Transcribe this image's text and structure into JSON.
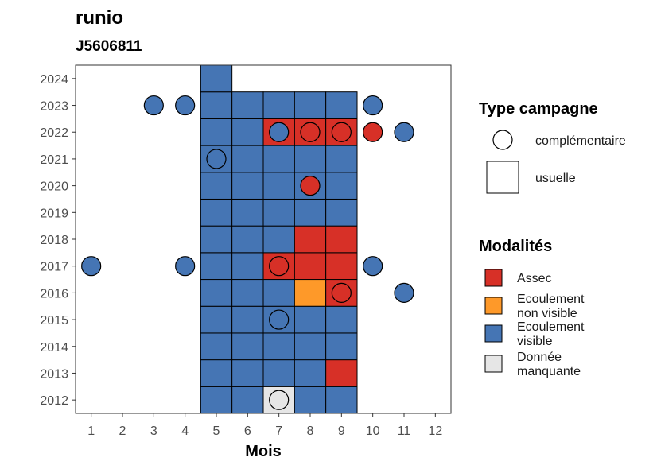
{
  "chart_data": {
    "type": "heatmap",
    "title": "runio",
    "subtitle": "J5606811",
    "xlabel": "Mois",
    "ylabel": "",
    "x_ticks": [
      1,
      2,
      3,
      4,
      5,
      6,
      7,
      8,
      9,
      10,
      11,
      12
    ],
    "y_ticks": [
      2012,
      2013,
      2014,
      2015,
      2016,
      2017,
      2018,
      2019,
      2020,
      2021,
      2022,
      2023,
      2024
    ],
    "xlim": [
      0.5,
      12.5
    ],
    "ylim": [
      2011.5,
      2024.5
    ],
    "grid": false,
    "legend_position": "right",
    "colors": {
      "Assec": "#d73027",
      "Ecoulement non visible": "#fe9929",
      "Ecoulement visible": "#4575b4",
      "Donnée manquante": "#e6e6e6"
    },
    "usuelle_cells": [
      {
        "month": 5,
        "year": 2012,
        "modalite": "Ecoulement visible"
      },
      {
        "month": 6,
        "year": 2012,
        "modalite": "Ecoulement visible"
      },
      {
        "month": 7,
        "year": 2012,
        "modalite": "Donnée manquante"
      },
      {
        "month": 8,
        "year": 2012,
        "modalite": "Ecoulement visible"
      },
      {
        "month": 9,
        "year": 2012,
        "modalite": "Ecoulement visible"
      },
      {
        "month": 5,
        "year": 2013,
        "modalite": "Ecoulement visible"
      },
      {
        "month": 6,
        "year": 2013,
        "modalite": "Ecoulement visible"
      },
      {
        "month": 7,
        "year": 2013,
        "modalite": "Ecoulement visible"
      },
      {
        "month": 8,
        "year": 2013,
        "modalite": "Ecoulement visible"
      },
      {
        "month": 9,
        "year": 2013,
        "modalite": "Assec"
      },
      {
        "month": 5,
        "year": 2014,
        "modalite": "Ecoulement visible"
      },
      {
        "month": 6,
        "year": 2014,
        "modalite": "Ecoulement visible"
      },
      {
        "month": 7,
        "year": 2014,
        "modalite": "Ecoulement visible"
      },
      {
        "month": 8,
        "year": 2014,
        "modalite": "Ecoulement visible"
      },
      {
        "month": 9,
        "year": 2014,
        "modalite": "Ecoulement visible"
      },
      {
        "month": 5,
        "year": 2015,
        "modalite": "Ecoulement visible"
      },
      {
        "month": 6,
        "year": 2015,
        "modalite": "Ecoulement visible"
      },
      {
        "month": 7,
        "year": 2015,
        "modalite": "Ecoulement visible"
      },
      {
        "month": 8,
        "year": 2015,
        "modalite": "Ecoulement visible"
      },
      {
        "month": 9,
        "year": 2015,
        "modalite": "Ecoulement visible"
      },
      {
        "month": 5,
        "year": 2016,
        "modalite": "Ecoulement visible"
      },
      {
        "month": 6,
        "year": 2016,
        "modalite": "Ecoulement visible"
      },
      {
        "month": 7,
        "year": 2016,
        "modalite": "Ecoulement visible"
      },
      {
        "month": 8,
        "year": 2016,
        "modalite": "Ecoulement non visible"
      },
      {
        "month": 9,
        "year": 2016,
        "modalite": "Assec"
      },
      {
        "month": 5,
        "year": 2017,
        "modalite": "Ecoulement visible"
      },
      {
        "month": 6,
        "year": 2017,
        "modalite": "Ecoulement visible"
      },
      {
        "month": 7,
        "year": 2017,
        "modalite": "Assec"
      },
      {
        "month": 8,
        "year": 2017,
        "modalite": "Assec"
      },
      {
        "month": 9,
        "year": 2017,
        "modalite": "Assec"
      },
      {
        "month": 5,
        "year": 2018,
        "modalite": "Ecoulement visible"
      },
      {
        "month": 6,
        "year": 2018,
        "modalite": "Ecoulement visible"
      },
      {
        "month": 7,
        "year": 2018,
        "modalite": "Ecoulement visible"
      },
      {
        "month": 8,
        "year": 2018,
        "modalite": "Assec"
      },
      {
        "month": 9,
        "year": 2018,
        "modalite": "Assec"
      },
      {
        "month": 5,
        "year": 2019,
        "modalite": "Ecoulement visible"
      },
      {
        "month": 6,
        "year": 2019,
        "modalite": "Ecoulement visible"
      },
      {
        "month": 7,
        "year": 2019,
        "modalite": "Ecoulement visible"
      },
      {
        "month": 8,
        "year": 2019,
        "modalite": "Ecoulement visible"
      },
      {
        "month": 9,
        "year": 2019,
        "modalite": "Ecoulement visible"
      },
      {
        "month": 5,
        "year": 2020,
        "modalite": "Ecoulement visible"
      },
      {
        "month": 6,
        "year": 2020,
        "modalite": "Ecoulement visible"
      },
      {
        "month": 7,
        "year": 2020,
        "modalite": "Ecoulement visible"
      },
      {
        "month": 8,
        "year": 2020,
        "modalite": "Ecoulement visible"
      },
      {
        "month": 9,
        "year": 2020,
        "modalite": "Ecoulement visible"
      },
      {
        "month": 5,
        "year": 2021,
        "modalite": "Ecoulement visible"
      },
      {
        "month": 6,
        "year": 2021,
        "modalite": "Ecoulement visible"
      },
      {
        "month": 7,
        "year": 2021,
        "modalite": "Ecoulement visible"
      },
      {
        "month": 8,
        "year": 2021,
        "modalite": "Ecoulement visible"
      },
      {
        "month": 9,
        "year": 2021,
        "modalite": "Ecoulement visible"
      },
      {
        "month": 5,
        "year": 2022,
        "modalite": "Ecoulement visible"
      },
      {
        "month": 6,
        "year": 2022,
        "modalite": "Ecoulement visible"
      },
      {
        "month": 7,
        "year": 2022,
        "modalite": "Assec"
      },
      {
        "month": 8,
        "year": 2022,
        "modalite": "Assec"
      },
      {
        "month": 9,
        "year": 2022,
        "modalite": "Assec"
      },
      {
        "month": 5,
        "year": 2023,
        "modalite": "Ecoulement visible"
      },
      {
        "month": 6,
        "year": 2023,
        "modalite": "Ecoulement visible"
      },
      {
        "month": 7,
        "year": 2023,
        "modalite": "Ecoulement visible"
      },
      {
        "month": 8,
        "year": 2023,
        "modalite": "Ecoulement visible"
      },
      {
        "month": 9,
        "year": 2023,
        "modalite": "Ecoulement visible"
      },
      {
        "month": 5,
        "year": 2024,
        "modalite": "Ecoulement visible"
      }
    ],
    "complementaire_points": [
      {
        "month": 7,
        "year": 2012,
        "modalite": "Donnée manquante"
      },
      {
        "month": 7,
        "year": 2015,
        "modalite": "Ecoulement visible"
      },
      {
        "month": 9,
        "year": 2016,
        "modalite": "Assec"
      },
      {
        "month": 11,
        "year": 2016,
        "modalite": "Ecoulement visible"
      },
      {
        "month": 1,
        "year": 2017,
        "modalite": "Ecoulement visible"
      },
      {
        "month": 4,
        "year": 2017,
        "modalite": "Ecoulement visible"
      },
      {
        "month": 7,
        "year": 2017,
        "modalite": "Assec"
      },
      {
        "month": 10,
        "year": 2017,
        "modalite": "Ecoulement visible"
      },
      {
        "month": 8,
        "year": 2020,
        "modalite": "Assec"
      },
      {
        "month": 5,
        "year": 2021,
        "modalite": "Ecoulement visible"
      },
      {
        "month": 7,
        "year": 2022,
        "modalite": "Ecoulement visible"
      },
      {
        "month": 8,
        "year": 2022,
        "modalite": "Assec"
      },
      {
        "month": 9,
        "year": 2022,
        "modalite": "Assec"
      },
      {
        "month": 10,
        "year": 2022,
        "modalite": "Assec"
      },
      {
        "month": 11,
        "year": 2022,
        "modalite": "Ecoulement visible"
      },
      {
        "month": 3,
        "year": 2023,
        "modalite": "Ecoulement visible"
      },
      {
        "month": 4,
        "year": 2023,
        "modalite": "Ecoulement visible"
      },
      {
        "month": 10,
        "year": 2023,
        "modalite": "Ecoulement visible"
      }
    ],
    "legend_type": {
      "title": "Type campagne",
      "items": [
        {
          "label": "complémentaire",
          "shape": "circle"
        },
        {
          "label": "usuelle",
          "shape": "square"
        }
      ]
    },
    "legend_modalites": {
      "title": "Modalités",
      "items": [
        {
          "label": "Assec",
          "lines": [
            "Assec"
          ]
        },
        {
          "label": "Ecoulement non visible",
          "lines": [
            "Ecoulement",
            "non visible"
          ]
        },
        {
          "label": "Ecoulement visible",
          "lines": [
            "Ecoulement",
            "visible"
          ]
        },
        {
          "label": "Donnée manquante",
          "lines": [
            "Donnée",
            "manquante"
          ]
        }
      ]
    }
  }
}
